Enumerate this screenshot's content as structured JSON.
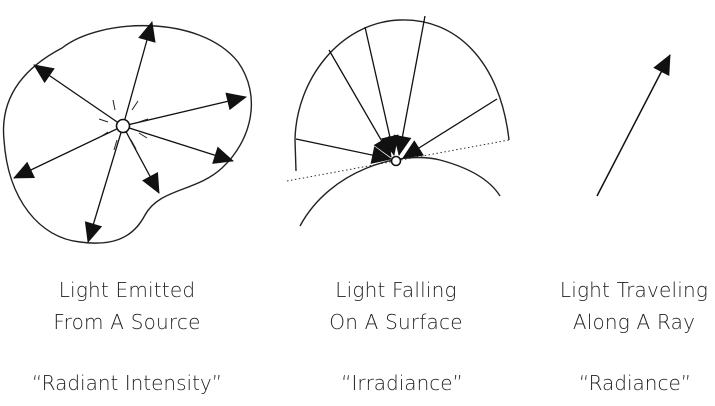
{
  "panels": [
    {
      "caption_line1": "Light Emitted",
      "caption_line2": "From A Source",
      "term": "“Radiant Intensity”"
    },
    {
      "caption_line1": "Light Falling",
      "caption_line2": "On A Surface",
      "term": "“Irradiance”"
    },
    {
      "caption_line1": "Light Traveling",
      "caption_line2": "Along A Ray",
      "term": "“Radiance”"
    }
  ],
  "colors": {
    "stroke": "#222222",
    "background": "#ffffff"
  }
}
